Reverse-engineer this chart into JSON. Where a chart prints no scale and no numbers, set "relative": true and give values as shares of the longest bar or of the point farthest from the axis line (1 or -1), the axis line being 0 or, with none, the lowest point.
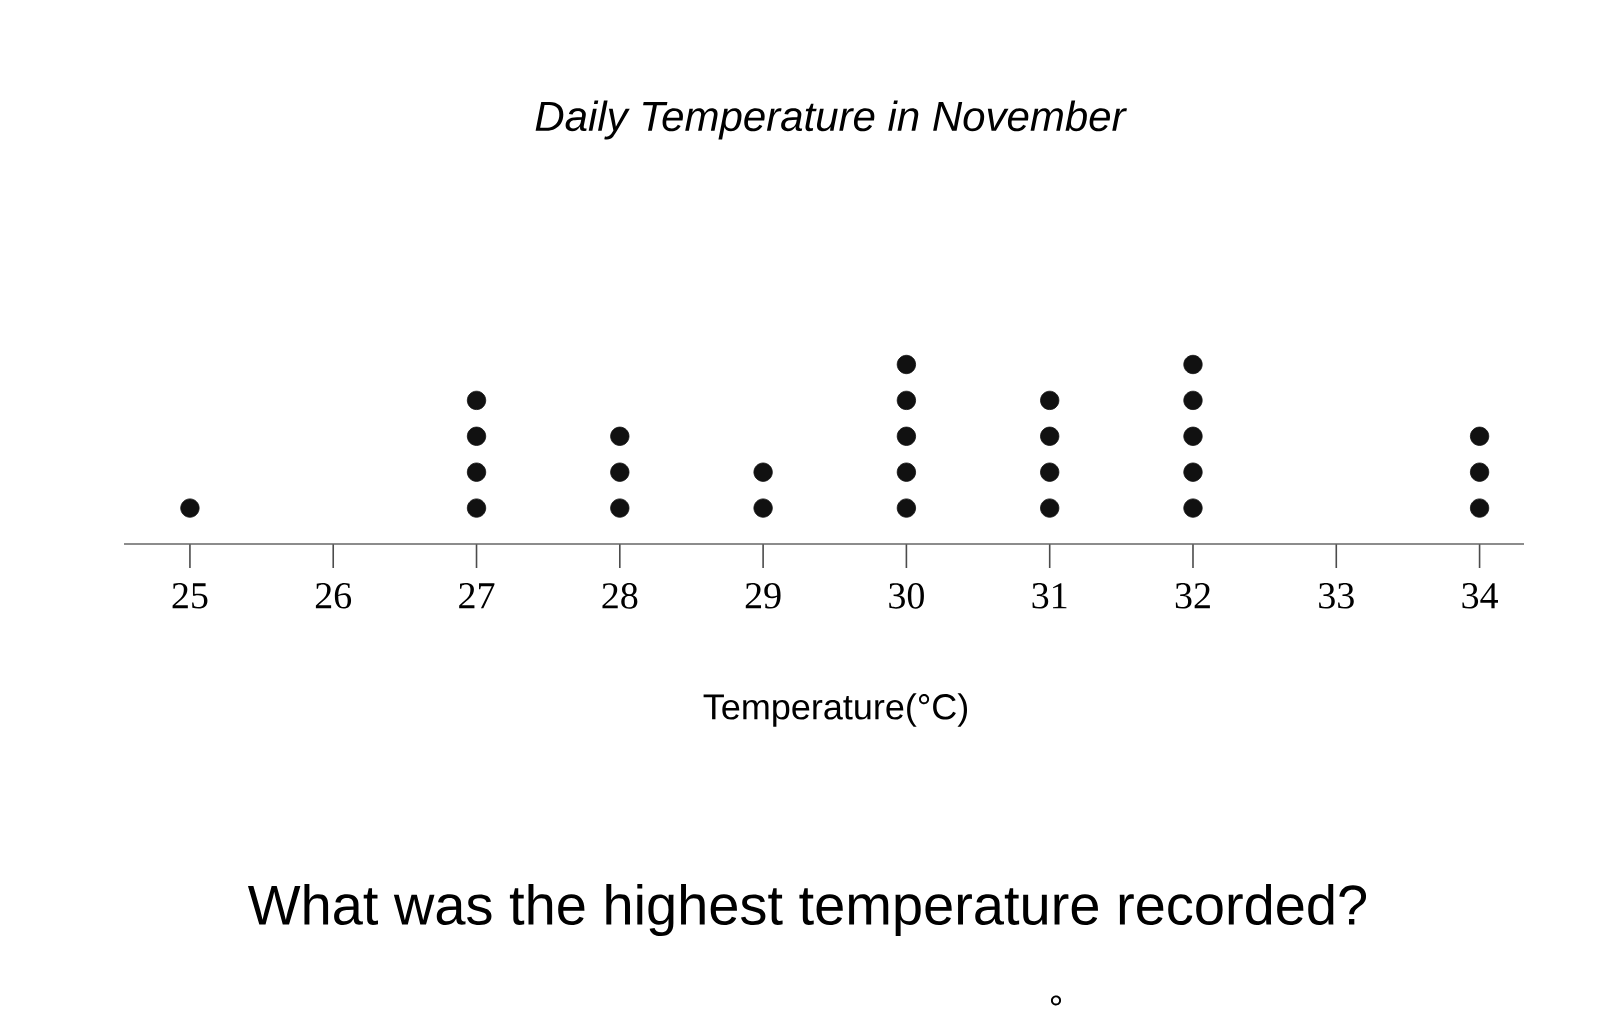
{
  "chart_data": {
    "type": "scatter",
    "title": "Daily Temperature in November",
    "xlabel": "Temperature(°C)",
    "x": [
      25,
      27,
      27,
      27,
      27,
      28,
      28,
      28,
      29,
      29,
      30,
      30,
      30,
      30,
      30,
      31,
      31,
      31,
      31,
      32,
      32,
      32,
      32,
      32,
      34,
      34,
      34
    ],
    "values": [
      0.2,
      0.2,
      0.4,
      0.6,
      0.8,
      0.2,
      0.4,
      0.6,
      0.2,
      0.4,
      0.2,
      0.4,
      0.6,
      0.8,
      1,
      0.2,
      0.4,
      0.6,
      0.8,
      0.2,
      0.4,
      0.6,
      0.8,
      1,
      0.2,
      0.4,
      0.6
    ],
    "relative": true,
    "color": "#111111",
    "marker": "circle",
    "xlim": [
      24.54,
      34.31
    ],
    "xticks": [
      25,
      26,
      27,
      28,
      29,
      30,
      31,
      32,
      33,
      34
    ],
    "tick_labels": "x",
    "grid": false,
    "annotations": [
      "What was the highest temperature recorded?",
      "°"
    ]
  }
}
